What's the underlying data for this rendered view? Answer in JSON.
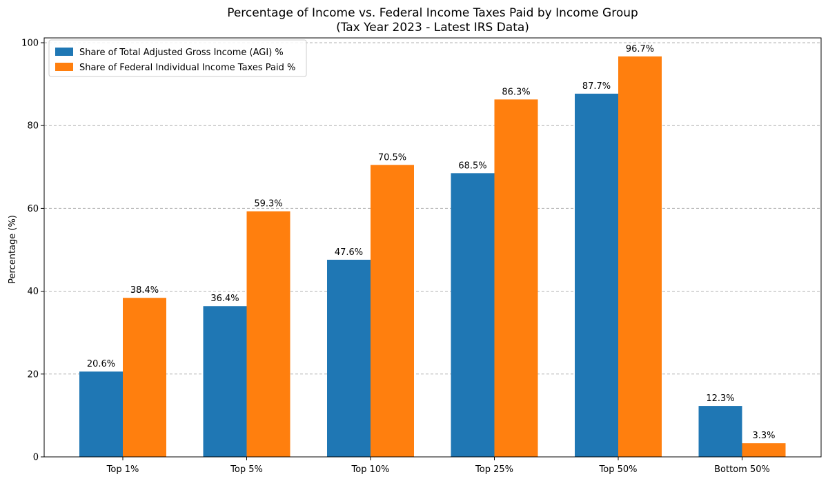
{
  "chart_data": {
    "type": "bar",
    "title": "Percentage of Income vs. Federal Income Taxes Paid by Income Group",
    "subtitle": "(Tax Year 2023 - Latest IRS Data)",
    "xlabel": "",
    "ylabel": "Percentage (%)",
    "ylim": [
      0,
      100
    ],
    "yticks": [
      0,
      20,
      40,
      60,
      80,
      100
    ],
    "grid": "y-dashed",
    "legend_position": "top-left",
    "categories": [
      "Top 1%",
      "Top 5%",
      "Top 10%",
      "Top 25%",
      "Top 50%",
      "Bottom 50%"
    ],
    "series": [
      {
        "name": "Share of Total Adjusted Gross Income (AGI) %",
        "color": "#1f77b4",
        "values": [
          20.6,
          36.4,
          47.6,
          68.5,
          87.7,
          12.3
        ],
        "labels": [
          "20.6%",
          "36.4%",
          "47.6%",
          "68.5%",
          "87.7%",
          "12.3%"
        ]
      },
      {
        "name": "Share of Federal Individual Income Taxes Paid %",
        "color": "#ff7f0e",
        "values": [
          38.4,
          59.3,
          70.5,
          86.3,
          96.7,
          3.3
        ],
        "labels": [
          "38.4%",
          "59.3%",
          "70.5%",
          "86.3%",
          "96.7%",
          "3.3%"
        ]
      }
    ]
  }
}
